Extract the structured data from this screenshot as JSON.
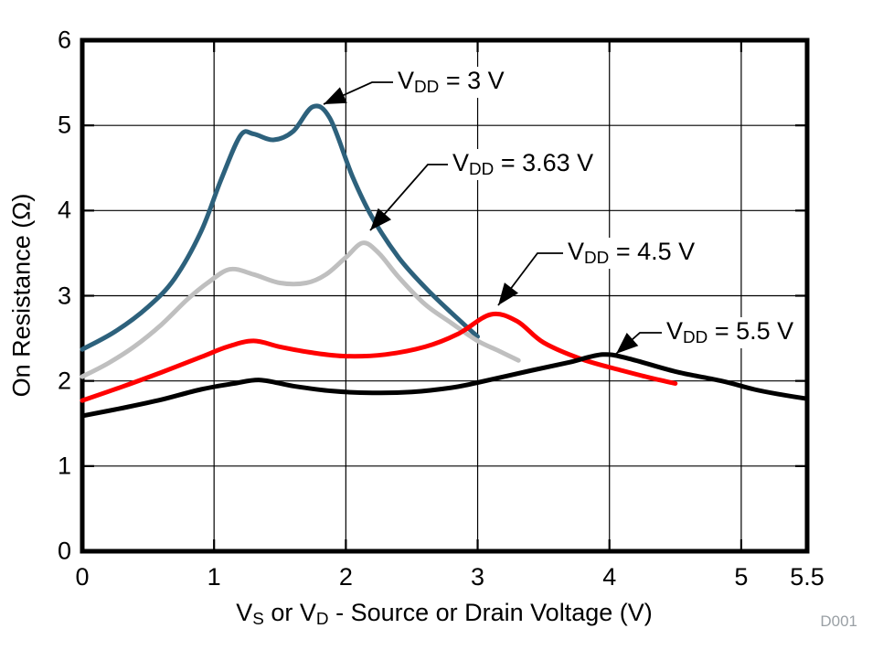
{
  "figure": {
    "watermark": "D001",
    "watermark_color": "#9aa0a5"
  },
  "chart_data": {
    "type": "line",
    "title": "",
    "xlabel": "VS or VD - Source or Drain Voltage (V)",
    "xlabel_parts": [
      [
        "t",
        "V"
      ],
      [
        "s",
        "S"
      ],
      [
        "t",
        " or V"
      ],
      [
        "s",
        "D"
      ],
      [
        "t",
        " - Source or Drain Voltage (V)"
      ]
    ],
    "ylabel": "On Resistance (Ω)",
    "xlim": [
      0,
      5.5
    ],
    "ylim": [
      0,
      6
    ],
    "x_ticks": [
      0,
      1,
      2,
      3,
      4,
      5,
      5.5
    ],
    "x_tick_labels": [
      "0",
      "1",
      "2",
      "3",
      "4",
      "5",
      "5.5"
    ],
    "y_ticks": [
      0,
      1,
      2,
      3,
      4,
      5,
      6
    ],
    "y_tick_labels": [
      "0",
      "1",
      "2",
      "3",
      "4",
      "5",
      "6"
    ],
    "grid": true,
    "legend_position": "inline-annotations",
    "series": [
      {
        "name": "VDD = 3 V",
        "color": "#2d617c",
        "points": [
          [
            0,
            2.37
          ],
          [
            0.25,
            2.58
          ],
          [
            0.5,
            2.87
          ],
          [
            0.7,
            3.2
          ],
          [
            0.9,
            3.75
          ],
          [
            1.05,
            4.35
          ],
          [
            1.2,
            4.88
          ],
          [
            1.3,
            4.9
          ],
          [
            1.45,
            4.83
          ],
          [
            1.6,
            4.93
          ],
          [
            1.75,
            5.22
          ],
          [
            1.88,
            5.08
          ],
          [
            2.05,
            4.4
          ],
          [
            2.2,
            3.92
          ],
          [
            2.4,
            3.45
          ],
          [
            2.6,
            3.1
          ],
          [
            2.8,
            2.8
          ],
          [
            3.0,
            2.52
          ]
        ]
      },
      {
        "name": "VDD = 3.63 V",
        "color": "#bfbfbf",
        "points": [
          [
            0,
            2.05
          ],
          [
            0.2,
            2.21
          ],
          [
            0.4,
            2.41
          ],
          [
            0.6,
            2.66
          ],
          [
            0.8,
            2.96
          ],
          [
            0.95,
            3.15
          ],
          [
            1.12,
            3.31
          ],
          [
            1.3,
            3.25
          ],
          [
            1.5,
            3.15
          ],
          [
            1.7,
            3.15
          ],
          [
            1.85,
            3.25
          ],
          [
            2.0,
            3.45
          ],
          [
            2.13,
            3.62
          ],
          [
            2.25,
            3.5
          ],
          [
            2.4,
            3.22
          ],
          [
            2.6,
            2.9
          ],
          [
            2.8,
            2.68
          ],
          [
            3.0,
            2.47
          ],
          [
            3.15,
            2.36
          ],
          [
            3.31,
            2.24
          ]
        ]
      },
      {
        "name": "VDD = 4.5 V",
        "color": "#ff0000",
        "points": [
          [
            0,
            1.77
          ],
          [
            0.3,
            1.93
          ],
          [
            0.6,
            2.1
          ],
          [
            0.9,
            2.28
          ],
          [
            1.1,
            2.4
          ],
          [
            1.3,
            2.47
          ],
          [
            1.5,
            2.4
          ],
          [
            1.75,
            2.33
          ],
          [
            2.0,
            2.29
          ],
          [
            2.3,
            2.31
          ],
          [
            2.6,
            2.4
          ],
          [
            2.85,
            2.55
          ],
          [
            3.1,
            2.78
          ],
          [
            3.3,
            2.7
          ],
          [
            3.5,
            2.45
          ],
          [
            3.8,
            2.25
          ],
          [
            4.1,
            2.12
          ],
          [
            4.3,
            2.04
          ],
          [
            4.5,
            1.97
          ]
        ]
      },
      {
        "name": "VDD = 5.5 V",
        "color": "#000000",
        "points": [
          [
            0,
            1.59
          ],
          [
            0.3,
            1.68
          ],
          [
            0.6,
            1.78
          ],
          [
            0.9,
            1.9
          ],
          [
            1.15,
            1.97
          ],
          [
            1.35,
            2.01
          ],
          [
            1.6,
            1.94
          ],
          [
            1.9,
            1.88
          ],
          [
            2.2,
            1.86
          ],
          [
            2.5,
            1.87
          ],
          [
            2.8,
            1.92
          ],
          [
            3.0,
            1.98
          ],
          [
            3.4,
            2.12
          ],
          [
            3.7,
            2.22
          ],
          [
            3.95,
            2.31
          ],
          [
            4.15,
            2.26
          ],
          [
            4.5,
            2.11
          ],
          [
            4.85,
            2.0
          ],
          [
            5.1,
            1.9
          ],
          [
            5.3,
            1.84
          ],
          [
            5.5,
            1.79
          ]
        ]
      }
    ],
    "annotations": [
      {
        "pre": "V",
        "sub": "DD",
        "post": " = 3 V"
      },
      {
        "pre": "V",
        "sub": "DD",
        "post": " = 3.63 V"
      },
      {
        "pre": "V",
        "sub": "DD",
        "post": " = 4.5 V"
      },
      {
        "pre": "V",
        "sub": "DD",
        "post": " = 5.5 V"
      }
    ]
  }
}
